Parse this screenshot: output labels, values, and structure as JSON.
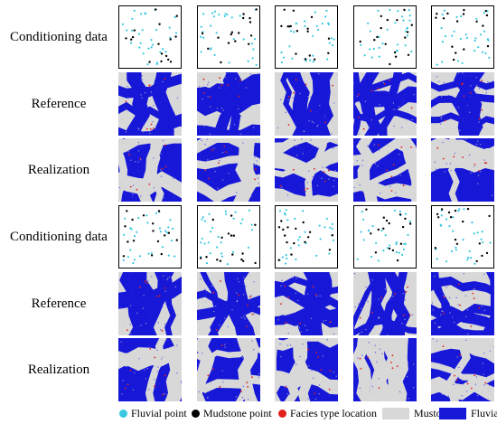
{
  "row_labels": [
    "Conditioning data",
    "Reference",
    "Realization",
    "Conditioning data",
    "Reference",
    "Realization"
  ],
  "legend": {
    "fluvial_point": "Fluvial point",
    "mudstone_point": "Mudstone point",
    "facies_type_location": "Facies type location",
    "mustone": "Mustone",
    "fluvial": "Fluvial"
  },
  "colors": {
    "fluvial_point": "#39c8e0",
    "mudstone_point": "#000000",
    "facies_location": "#e0201a",
    "mustone": "#d8d8d8",
    "fluvial": "#1717d8",
    "tile_border": "#000000"
  }
}
